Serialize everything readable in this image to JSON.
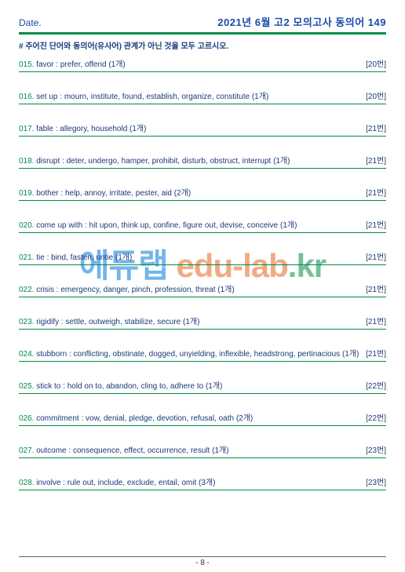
{
  "header": {
    "date_label": "Date.",
    "title": "2021년 6월 고2 모의고사  동의어 149"
  },
  "instruction": "# 주어진 단어와 동의어(유사어) 관계가 아닌 것을 모두 고르시오.",
  "questions": [
    {
      "num": "015.",
      "text": "favor : prefer, offend (1개)",
      "ref": "[20번]"
    },
    {
      "num": "016.",
      "text": "set up : mourn, institute, found, establish, organize, constitute (1개)",
      "ref": "[20번]"
    },
    {
      "num": "017.",
      "text": "fable : allegory, household (1개)",
      "ref": "[21번]"
    },
    {
      "num": "018.",
      "text": "disrupt : deter, undergo, hamper, prohibit, disturb, obstruct, interrupt (1개)",
      "ref": "[21번]"
    },
    {
      "num": "019.",
      "text": "bother : help, annoy, irritate, pester, aid (2개)",
      "ref": "[21번]"
    },
    {
      "num": "020.",
      "text": "come up with : hit upon, think up, confine, figure out, devise, conceive (1개)",
      "ref": "[21번]"
    },
    {
      "num": "021.",
      "text": "tie : bind, fasten, untie (1개)",
      "ref": "[21번]"
    },
    {
      "num": "022.",
      "text": "crisis : emergency, danger, pinch, profession, threat (1개)",
      "ref": "[21번]"
    },
    {
      "num": "023.",
      "text": "rigidify : settle, outweigh, stabilize, secure (1개)",
      "ref": "[21번]"
    },
    {
      "num": "024.",
      "text": "stubborn : conflicting, obstinate, dogged, unyielding, inflexible, headstrong, pertinacious (1개)",
      "ref": "[21번]"
    },
    {
      "num": "025.",
      "text": "stick to : hold on to, abandon, cling to, adhere to (1개)",
      "ref": "[22번]"
    },
    {
      "num": "026.",
      "text": "commitment : vow, denial, pledge, devotion, refusal, oath (2개)",
      "ref": "[22번]"
    },
    {
      "num": "027.",
      "text": "outcome : consequence, effect, occurrence, result (1개)",
      "ref": "[23번]"
    },
    {
      "num": "028.",
      "text": "involve : rule out, include, exclude, entail, omit (3개)",
      "ref": "[23번]"
    }
  ],
  "watermark": {
    "part1": "에듀랩 ",
    "part2": "edu-lab",
    "part3": ".kr"
  },
  "footer": {
    "page": "- 8 -"
  },
  "colors": {
    "green": "#008c4a",
    "blue": "#1a4aa8",
    "textblue": "#1a3a7a"
  }
}
